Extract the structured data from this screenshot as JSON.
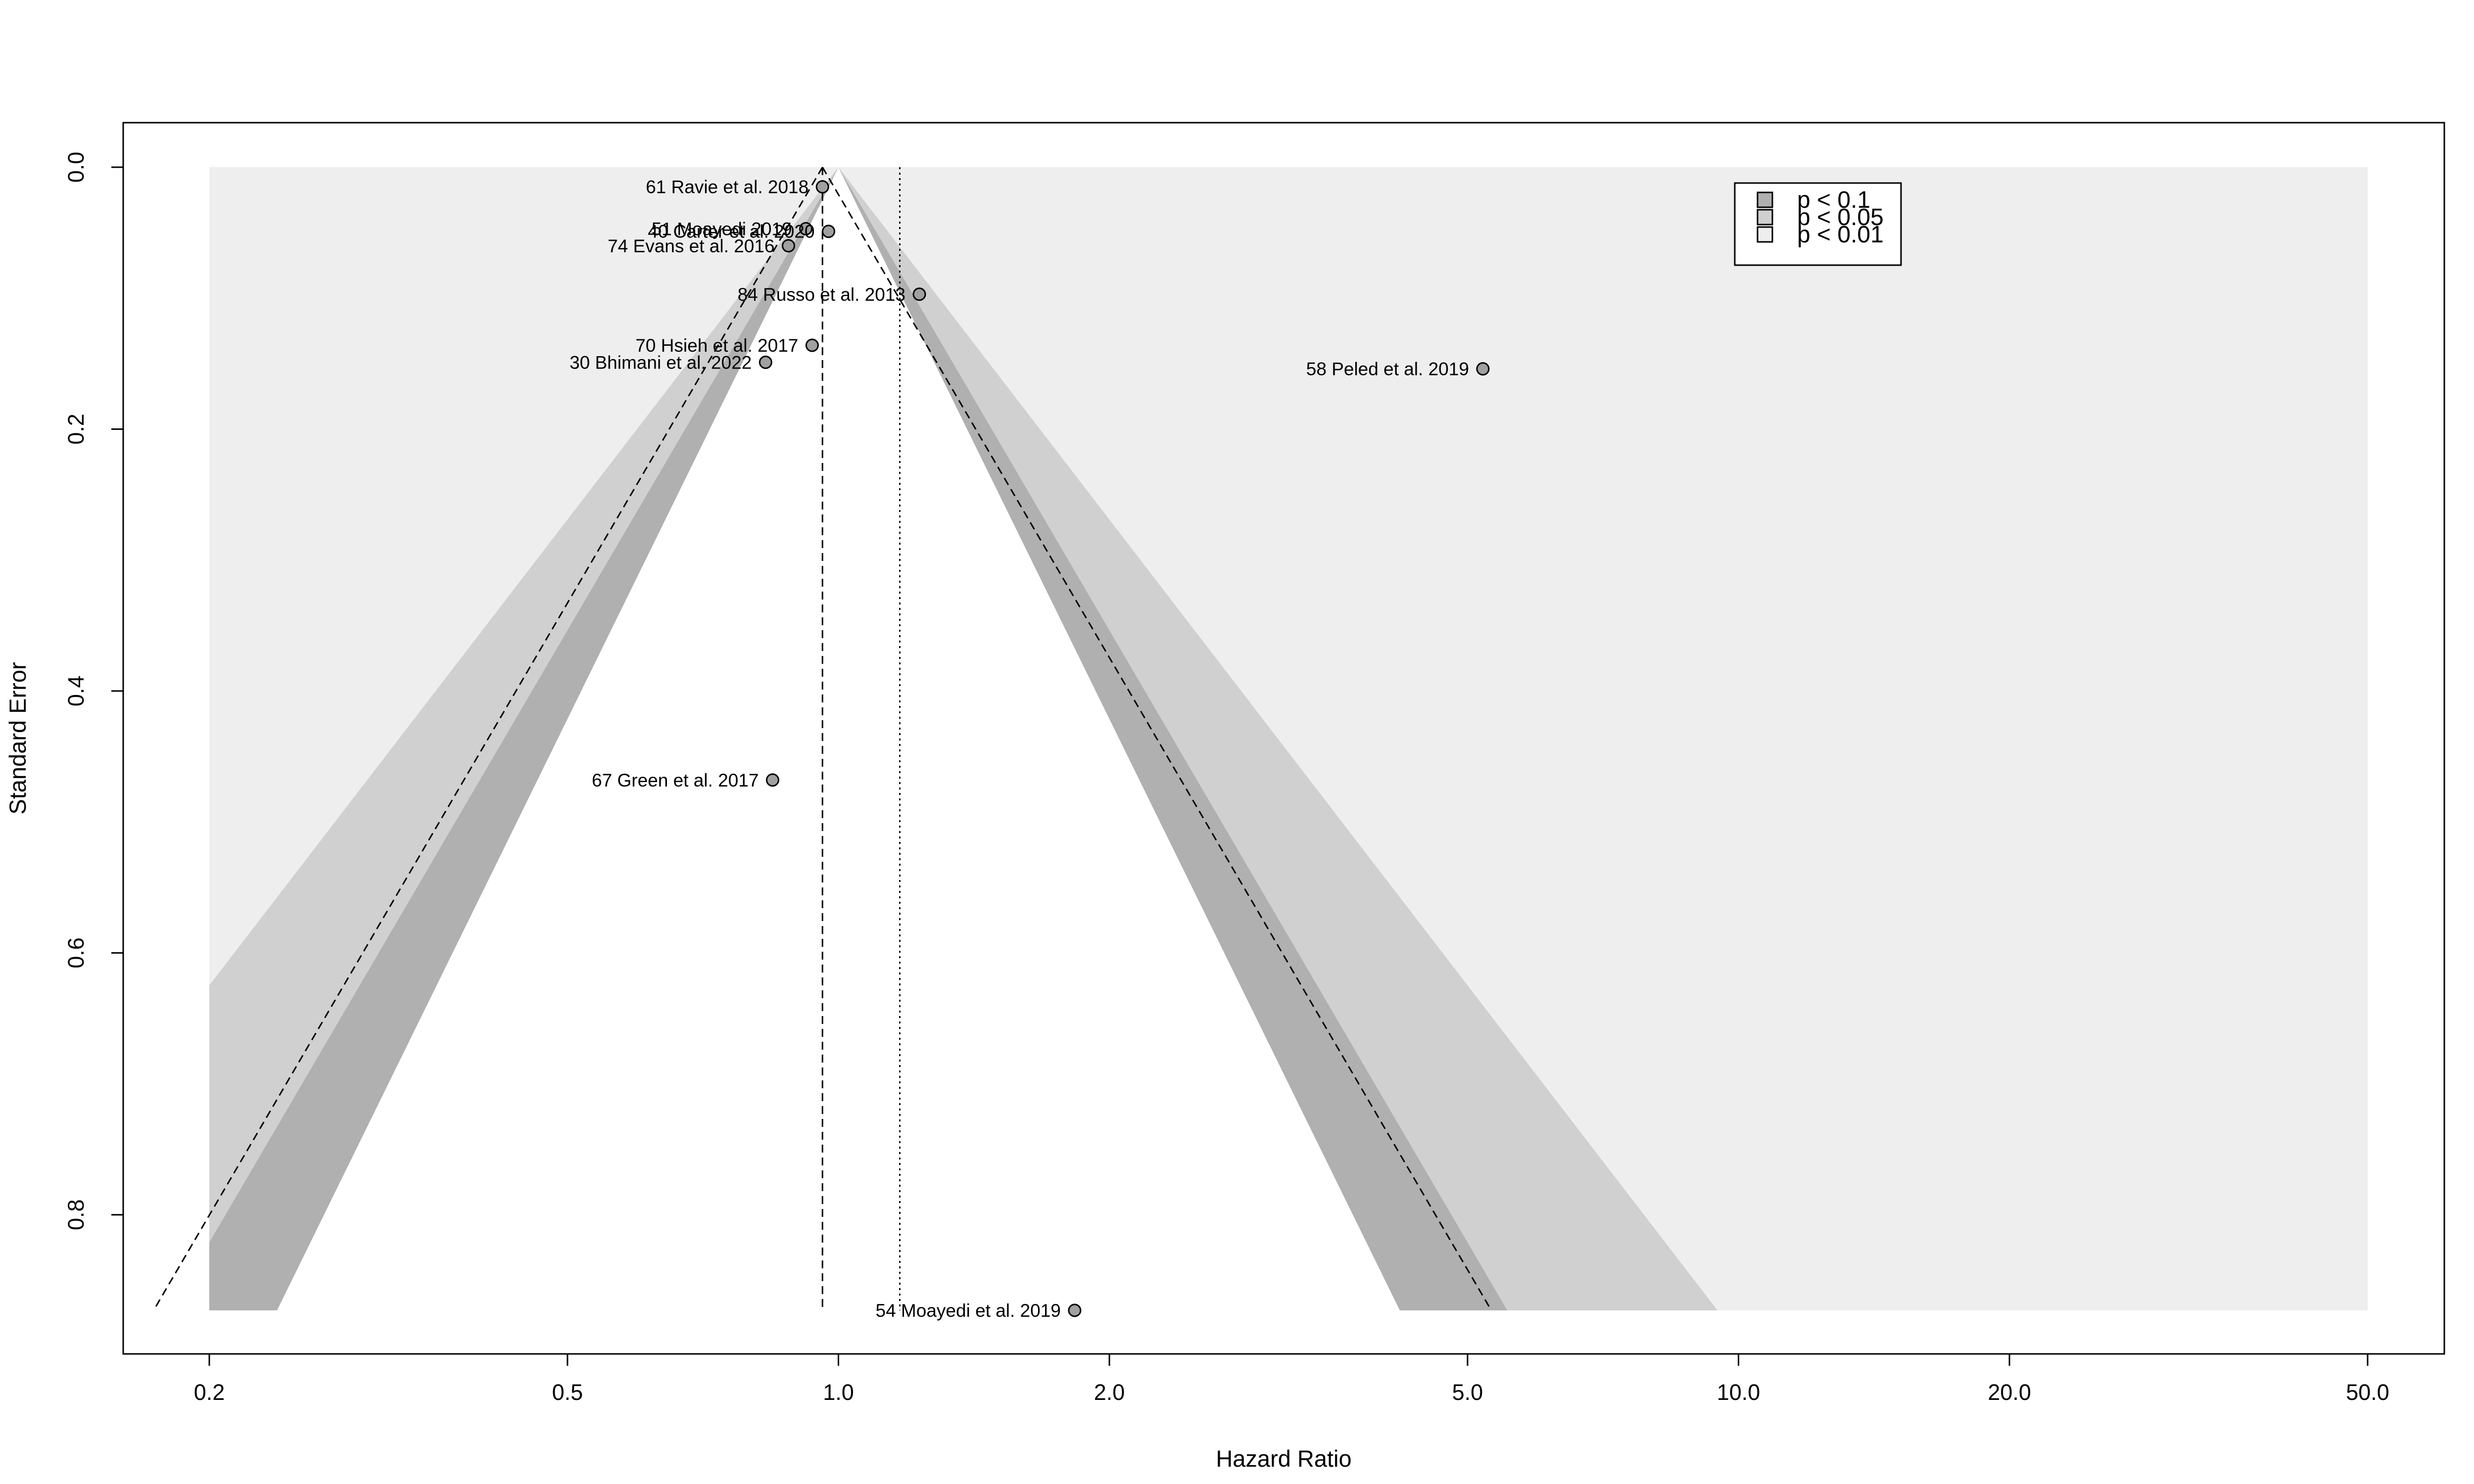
{
  "chart_data": {
    "type": "scatter",
    "subtype": "contour-enhanced funnel plot",
    "title": "",
    "xlabel": "Hazard Ratio",
    "ylabel": "Standard Error",
    "x_scale": "log",
    "y_reversed": true,
    "xlim": [
      0.2,
      50.0
    ],
    "ylim": [
      0.0,
      0.873
    ],
    "x_ticks": [
      "0.2",
      "0.5",
      "1.0",
      "2.0",
      "5.0",
      "10.0",
      "20.0",
      "50.0"
    ],
    "x_tick_values": [
      0.2,
      0.5,
      1.0,
      2.0,
      5.0,
      10.0,
      20.0,
      50.0
    ],
    "y_ticks": [
      "0.0",
      "0.2",
      "0.4",
      "0.6",
      "0.8"
    ],
    "y_tick_values": [
      0.0,
      0.2,
      0.4,
      0.6,
      0.8
    ],
    "contour_center": 1.0,
    "contour_z": [
      1.645,
      1.96,
      2.576
    ],
    "contour_colors": [
      "#ffffff",
      "#b0b0b0",
      "#d0d0d0",
      "#eeeeee"
    ],
    "legend": {
      "position": "top-right",
      "items": [
        {
          "label": "p < 0.1",
          "color": "#b0b0b0"
        },
        {
          "label": "p < 0.05",
          "color": "#d0d0d0"
        },
        {
          "label": "p < 0.01",
          "color": "#eeeeee"
        }
      ]
    },
    "fixed_effect_estimate": 0.96,
    "random_effect_estimate": 1.17,
    "ci_center": 0.96,
    "point_color": "#a0a0a0",
    "points": [
      {
        "label": "61 Ravie et al. 2018",
        "x": 0.96,
        "y": 0.015
      },
      {
        "label": "51 Moayedi 2019",
        "x": 0.92,
        "y": 0.047
      },
      {
        "label": "40 Carter et al. 2020",
        "x": 0.975,
        "y": 0.049
      },
      {
        "label": "74 Evans et al. 2016",
        "x": 0.88,
        "y": 0.06
      },
      {
        "label": "84 Russo et al. 2013",
        "x": 1.23,
        "y": 0.097
      },
      {
        "label": "70 Hsieh et al. 2017",
        "x": 0.935,
        "y": 0.136
      },
      {
        "label": "30 Bhimani et al. 2022",
        "x": 0.83,
        "y": 0.149
      },
      {
        "label": "58 Peled et al. 2019",
        "x": 5.2,
        "y": 0.154
      },
      {
        "label": "67 Green et al. 2017",
        "x": 0.845,
        "y": 0.468
      },
      {
        "label": "54 Moayedi et al. 2019",
        "x": 1.83,
        "y": 0.873
      }
    ]
  }
}
